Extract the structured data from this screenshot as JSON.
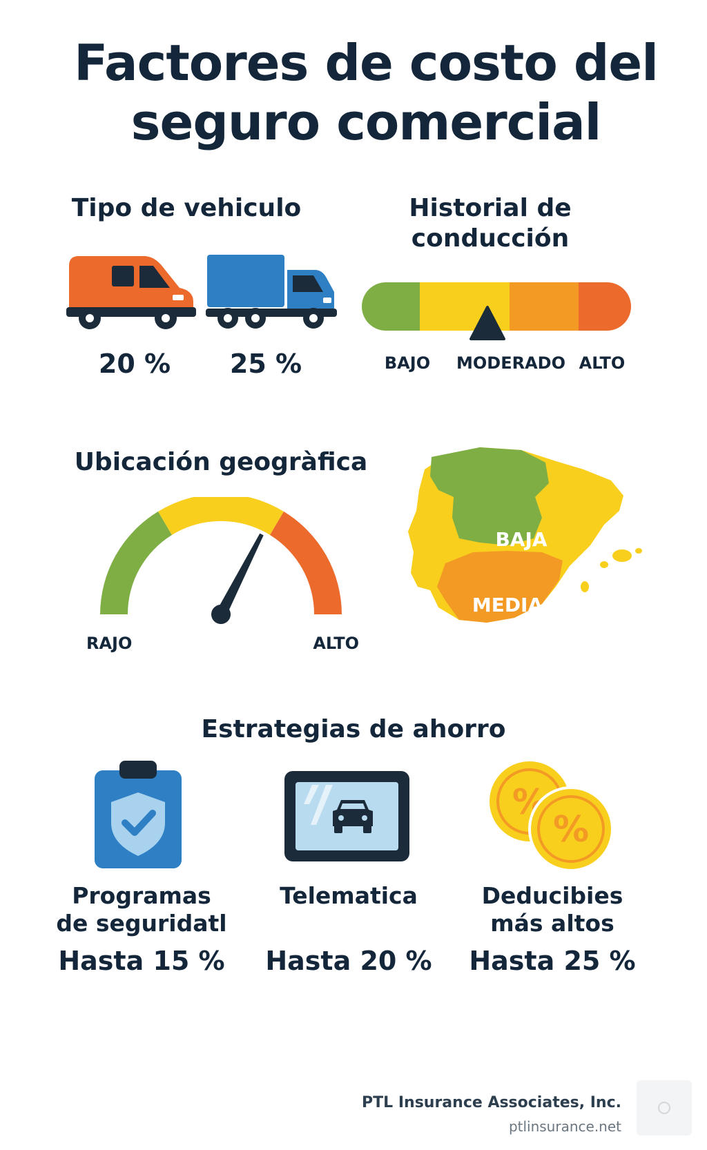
{
  "title": {
    "line1": "Factores de costo del",
    "line2": "seguro comercial"
  },
  "vehicle": {
    "heading": "Tipo de vehiculo",
    "van_pct": "20 %",
    "truck_pct": "25 %",
    "van_icon": "van-icon",
    "truck_icon": "truck-icon"
  },
  "driving": {
    "heading_line1": "Historial de",
    "heading_line2": "conducción",
    "levels": [
      "BAJO",
      "MODERADO",
      "ALTO"
    ],
    "pointer_level": "MODERADO"
  },
  "geo": {
    "heading": "Ubicación geogràfica",
    "gauge_low": "RAJO",
    "gauge_high": "ALTO",
    "gauge_fraction": 0.65,
    "map_labels": {
      "north": "BAJA",
      "south": "MEDIA"
    }
  },
  "strategies": {
    "heading": "Estrategias de ahorro",
    "items": [
      {
        "name_line1": "Programas",
        "name_line2": "de seguridatl",
        "value": "Hasta 15 %",
        "icon": "shield-clipboard-icon"
      },
      {
        "name_line1": "Telematica",
        "name_line2": "",
        "value": "Hasta 20 %",
        "icon": "telematics-car-icon"
      },
      {
        "name_line1": "Deducibies",
        "name_line2": "más altos",
        "value": "Hasta 25 %",
        "icon": "percent-coins-icon"
      }
    ]
  },
  "footer": {
    "company": "PTL Insurance Associates, Inc.",
    "url": "ptlinsurance.net"
  },
  "colors": {
    "green": "#7fae45",
    "yellow": "#f9cf1e",
    "orange": "#f39a24",
    "red": "#ec6a2c",
    "navy": "#1b2b3a",
    "blue": "#2f7fc5"
  }
}
